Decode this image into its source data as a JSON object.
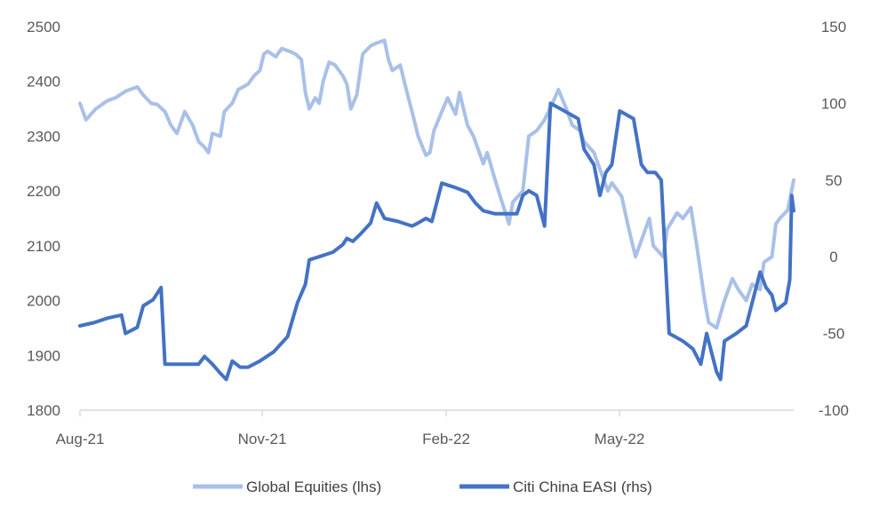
{
  "chart_data": {
    "type": "line",
    "x_ticks": [
      "Aug-21",
      "Nov-21",
      "Feb-22",
      "May-22"
    ],
    "y_left_ticks": [
      1800,
      1900,
      2000,
      2100,
      2200,
      2300,
      2400,
      2500
    ],
    "y_right_ticks": [
      -100,
      -50,
      0,
      50,
      100,
      150
    ],
    "y_left_range": [
      1800,
      2500
    ],
    "y_right_range": [
      -100,
      150
    ],
    "x_range": [
      "2021-08-02",
      "2022-07-29"
    ],
    "grid": false,
    "legend_position": "bottom",
    "series": [
      {
        "name": "Global Equities (lhs)",
        "axis": "left",
        "color": "#a9c0e8",
        "points": [
          [
            "2021-08-02",
            2360
          ],
          [
            "2021-08-05",
            2330
          ],
          [
            "2021-08-10",
            2350
          ],
          [
            "2021-08-16",
            2365
          ],
          [
            "2021-08-20",
            2370
          ],
          [
            "2021-08-25",
            2382
          ],
          [
            "2021-08-31",
            2390
          ],
          [
            "2021-09-03",
            2375
          ],
          [
            "2021-09-07",
            2360
          ],
          [
            "2021-09-10",
            2358
          ],
          [
            "2021-09-14",
            2345
          ],
          [
            "2021-09-17",
            2320
          ],
          [
            "2021-09-20",
            2305
          ],
          [
            "2021-09-24",
            2345
          ],
          [
            "2021-09-28",
            2320
          ],
          [
            "2021-10-01",
            2290
          ],
          [
            "2021-10-04",
            2280
          ],
          [
            "2021-10-06",
            2270
          ],
          [
            "2021-10-08",
            2305
          ],
          [
            "2021-10-12",
            2300
          ],
          [
            "2021-10-14",
            2345
          ],
          [
            "2021-10-18",
            2360
          ],
          [
            "2021-10-21",
            2385
          ],
          [
            "2021-10-26",
            2395
          ],
          [
            "2021-10-29",
            2410
          ],
          [
            "2021-11-01",
            2420
          ],
          [
            "2021-11-03",
            2450
          ],
          [
            "2021-11-05",
            2455
          ],
          [
            "2021-11-09",
            2445
          ],
          [
            "2021-11-12",
            2460
          ],
          [
            "2021-11-16",
            2455
          ],
          [
            "2021-11-19",
            2450
          ],
          [
            "2021-11-22",
            2440
          ],
          [
            "2021-11-24",
            2380
          ],
          [
            "2021-11-26",
            2350
          ],
          [
            "2021-11-29",
            2370
          ],
          [
            "2021-12-01",
            2360
          ],
          [
            "2021-12-03",
            2400
          ],
          [
            "2021-12-06",
            2435
          ],
          [
            "2021-12-09",
            2430
          ],
          [
            "2021-12-13",
            2410
          ],
          [
            "2021-12-15",
            2395
          ],
          [
            "2021-12-17",
            2350
          ],
          [
            "2021-12-20",
            2375
          ],
          [
            "2021-12-23",
            2450
          ],
          [
            "2021-12-27",
            2465
          ],
          [
            "2021-12-30",
            2470
          ],
          [
            "2022-01-03",
            2475
          ],
          [
            "2022-01-05",
            2440
          ],
          [
            "2022-01-07",
            2420
          ],
          [
            "2022-01-11",
            2430
          ],
          [
            "2022-01-13",
            2400
          ],
          [
            "2022-01-18",
            2330
          ],
          [
            "2022-01-20",
            2300
          ],
          [
            "2022-01-24",
            2265
          ],
          [
            "2022-01-26",
            2270
          ],
          [
            "2022-01-28",
            2310
          ],
          [
            "2022-02-01",
            2345
          ],
          [
            "2022-02-04",
            2370
          ],
          [
            "2022-02-08",
            2340
          ],
          [
            "2022-02-10",
            2380
          ],
          [
            "2022-02-14",
            2320
          ],
          [
            "2022-02-17",
            2300
          ],
          [
            "2022-02-22",
            2250
          ],
          [
            "2022-02-24",
            2270
          ],
          [
            "2022-02-28",
            2220
          ],
          [
            "2022-03-03",
            2185
          ],
          [
            "2022-03-07",
            2140
          ],
          [
            "2022-03-09",
            2180
          ],
          [
            "2022-03-14",
            2200
          ],
          [
            "2022-03-17",
            2300
          ],
          [
            "2022-03-21",
            2310
          ],
          [
            "2022-03-25",
            2330
          ],
          [
            "2022-03-29",
            2360
          ],
          [
            "2022-04-01",
            2385
          ],
          [
            "2022-04-05",
            2350
          ],
          [
            "2022-04-08",
            2320
          ],
          [
            "2022-04-12",
            2310
          ],
          [
            "2022-04-14",
            2290
          ],
          [
            "2022-04-19",
            2270
          ],
          [
            "2022-04-22",
            2240
          ],
          [
            "2022-04-26",
            2200
          ],
          [
            "2022-04-28",
            2215
          ],
          [
            "2022-05-03",
            2190
          ],
          [
            "2022-05-06",
            2140
          ],
          [
            "2022-05-10",
            2080
          ],
          [
            "2022-05-13",
            2110
          ],
          [
            "2022-05-17",
            2150
          ],
          [
            "2022-05-19",
            2100
          ],
          [
            "2022-05-24",
            2080
          ],
          [
            "2022-05-26",
            2130
          ],
          [
            "2022-05-31",
            2160
          ],
          [
            "2022-06-03",
            2150
          ],
          [
            "2022-06-07",
            2170
          ],
          [
            "2022-06-10",
            2100
          ],
          [
            "2022-06-14",
            2000
          ],
          [
            "2022-06-16",
            1960
          ],
          [
            "2022-06-20",
            1950
          ],
          [
            "2022-06-24",
            2000
          ],
          [
            "2022-06-28",
            2040
          ],
          [
            "2022-07-01",
            2020
          ],
          [
            "2022-07-05",
            2000
          ],
          [
            "2022-07-08",
            2030
          ],
          [
            "2022-07-12",
            2020
          ],
          [
            "2022-07-14",
            2070
          ],
          [
            "2022-07-18",
            2080
          ],
          [
            "2022-07-20",
            2140
          ],
          [
            "2022-07-22",
            2150
          ],
          [
            "2022-07-26",
            2165
          ],
          [
            "2022-07-29",
            2220
          ]
        ]
      },
      {
        "name": "Citi China EASI (rhs)",
        "axis": "right",
        "color": "#4472c4",
        "points": [
          [
            "2021-08-02",
            -45
          ],
          [
            "2021-08-09",
            -43
          ],
          [
            "2021-08-16",
            -40
          ],
          [
            "2021-08-23",
            -38
          ],
          [
            "2021-08-25",
            -50
          ],
          [
            "2021-08-31",
            -46
          ],
          [
            "2021-09-03",
            -32
          ],
          [
            "2021-09-08",
            -28
          ],
          [
            "2021-09-12",
            -20
          ],
          [
            "2021-09-14",
            -70
          ],
          [
            "2021-09-20",
            -70
          ],
          [
            "2021-09-27",
            -70
          ],
          [
            "2021-10-01",
            -70
          ],
          [
            "2021-10-04",
            -65
          ],
          [
            "2021-10-08",
            -70
          ],
          [
            "2021-10-12",
            -76
          ],
          [
            "2021-10-15",
            -80
          ],
          [
            "2021-10-18",
            -68
          ],
          [
            "2021-10-22",
            -72
          ],
          [
            "2021-10-26",
            -72
          ],
          [
            "2021-11-01",
            -68
          ],
          [
            "2021-11-08",
            -62
          ],
          [
            "2021-11-15",
            -52
          ],
          [
            "2021-11-20",
            -30
          ],
          [
            "2021-11-24",
            -18
          ],
          [
            "2021-11-26",
            -2
          ],
          [
            "2021-12-01",
            0
          ],
          [
            "2021-12-08",
            3
          ],
          [
            "2021-12-13",
            8
          ],
          [
            "2021-12-15",
            12
          ],
          [
            "2021-12-18",
            10
          ],
          [
            "2021-12-22",
            15
          ],
          [
            "2021-12-27",
            22
          ],
          [
            "2021-12-30",
            35
          ],
          [
            "2022-01-03",
            25
          ],
          [
            "2022-01-10",
            23
          ],
          [
            "2022-01-17",
            20
          ],
          [
            "2022-01-20",
            22
          ],
          [
            "2022-01-24",
            25
          ],
          [
            "2022-01-27",
            23
          ],
          [
            "2022-02-01",
            48
          ],
          [
            "2022-02-08",
            45
          ],
          [
            "2022-02-14",
            42
          ],
          [
            "2022-02-18",
            35
          ],
          [
            "2022-02-22",
            30
          ],
          [
            "2022-02-28",
            28
          ],
          [
            "2022-03-07",
            28
          ],
          [
            "2022-03-11",
            28
          ],
          [
            "2022-03-14",
            40
          ],
          [
            "2022-03-17",
            43
          ],
          [
            "2022-03-21",
            40
          ],
          [
            "2022-03-25",
            20
          ],
          [
            "2022-03-28",
            100
          ],
          [
            "2022-04-04",
            95
          ],
          [
            "2022-04-11",
            90
          ],
          [
            "2022-04-14",
            70
          ],
          [
            "2022-04-19",
            60
          ],
          [
            "2022-04-22",
            40
          ],
          [
            "2022-04-25",
            55
          ],
          [
            "2022-04-28",
            60
          ],
          [
            "2022-05-02",
            95
          ],
          [
            "2022-05-09",
            90
          ],
          [
            "2022-05-13",
            60
          ],
          [
            "2022-05-16",
            55
          ],
          [
            "2022-05-20",
            55
          ],
          [
            "2022-05-23",
            50
          ],
          [
            "2022-05-27",
            -50
          ],
          [
            "2022-06-03",
            -55
          ],
          [
            "2022-06-08",
            -60
          ],
          [
            "2022-06-12",
            -70
          ],
          [
            "2022-06-15",
            -50
          ],
          [
            "2022-06-20",
            -75
          ],
          [
            "2022-06-22",
            -80
          ],
          [
            "2022-06-24",
            -55
          ],
          [
            "2022-06-30",
            -50
          ],
          [
            "2022-07-05",
            -45
          ],
          [
            "2022-07-08",
            -30
          ],
          [
            "2022-07-12",
            -10
          ],
          [
            "2022-07-15",
            -20
          ],
          [
            "2022-07-18",
            -25
          ],
          [
            "2022-07-20",
            -35
          ],
          [
            "2022-07-25",
            -30
          ],
          [
            "2022-07-27",
            -15
          ],
          [
            "2022-07-28",
            40
          ],
          [
            "2022-07-29",
            30
          ]
        ]
      }
    ]
  }
}
